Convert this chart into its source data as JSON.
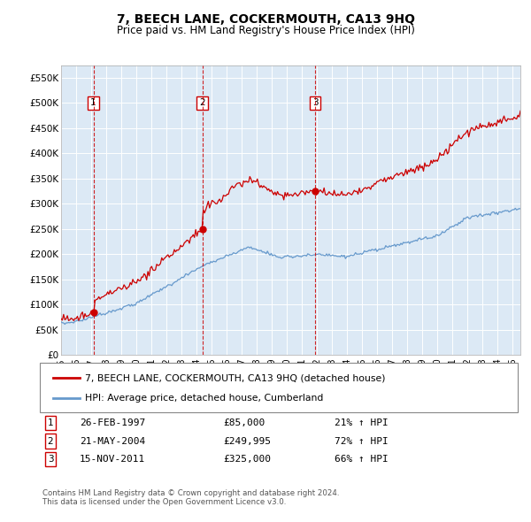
{
  "title": "7, BEECH LANE, COCKERMOUTH, CA13 9HQ",
  "subtitle": "Price paid vs. HM Land Registry's House Price Index (HPI)",
  "ylabel_ticks": [
    "£0",
    "£50K",
    "£100K",
    "£150K",
    "£200K",
    "£250K",
    "£300K",
    "£350K",
    "£400K",
    "£450K",
    "£500K",
    "£550K"
  ],
  "ytick_values": [
    0,
    50000,
    100000,
    150000,
    200000,
    250000,
    300000,
    350000,
    400000,
    450000,
    500000,
    550000
  ],
  "xmin": 1995.0,
  "xmax": 2025.5,
  "ymin": 0,
  "ymax": 575000,
  "background_color": "#dce9f5",
  "grid_color": "#ffffff",
  "red_line_color": "#cc0000",
  "blue_line_color": "#6699cc",
  "sale_marker_color": "#cc0000",
  "vline_color": "#cc0000",
  "transactions": [
    {
      "id": 1,
      "date_str": "26-FEB-1997",
      "year": 1997.15,
      "price": 85000,
      "pct": "21%",
      "dir": "↑"
    },
    {
      "id": 2,
      "date_str": "21-MAY-2004",
      "year": 2004.38,
      "price": 249995,
      "pct": "72%",
      "dir": "↑"
    },
    {
      "id": 3,
      "date_str": "15-NOV-2011",
      "year": 2011.87,
      "price": 325000,
      "pct": "66%",
      "dir": "↑"
    }
  ],
  "legend_label_red": "7, BEECH LANE, COCKERMOUTH, CA13 9HQ (detached house)",
  "legend_label_blue": "HPI: Average price, detached house, Cumberland",
  "footer1": "Contains HM Land Registry data © Crown copyright and database right 2024.",
  "footer2": "This data is licensed under the Open Government Licence v3.0."
}
